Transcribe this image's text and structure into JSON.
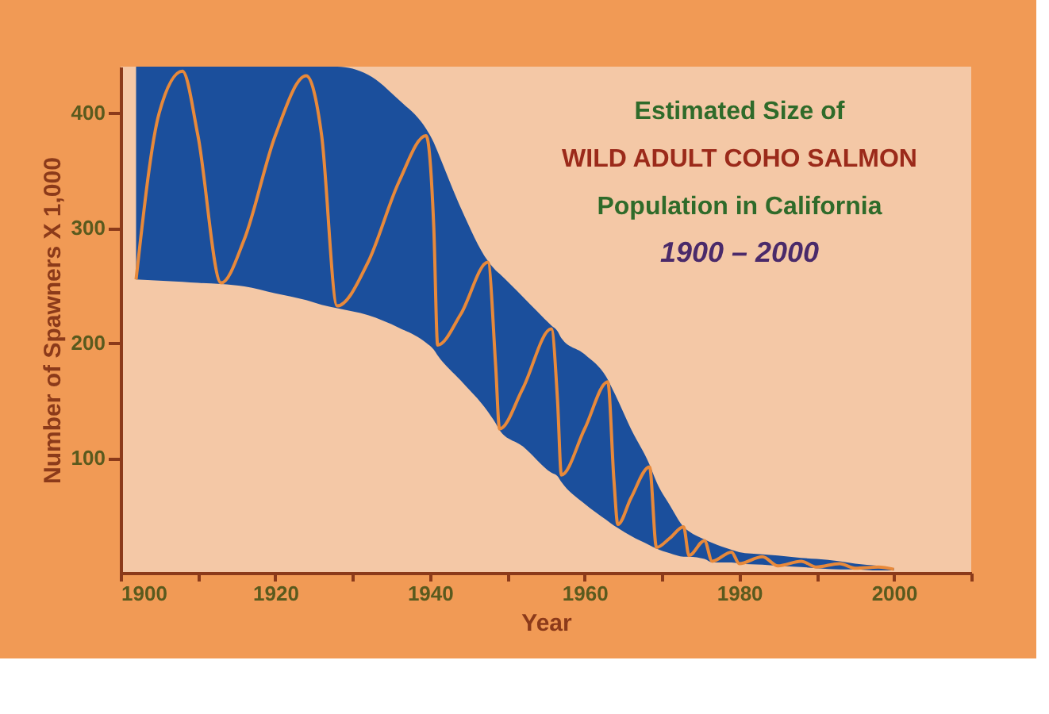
{
  "chart_data": {
    "type": "line",
    "xlabel": "Year",
    "ylabel": "Number of Spawners X 1,000",
    "annotations": [
      "Estimated Size of",
      "WILD ADULT COHO SALMON",
      "Population in California",
      "1900 – 2000"
    ],
    "xlim": [
      1900,
      2010
    ],
    "ylim": [
      0,
      440
    ],
    "xticks": [
      1900,
      {
        "value": 1910,
        "label": null
      },
      1920,
      {
        "value": 1930,
        "label": null
      },
      1940,
      {
        "value": 1950,
        "label": null
      },
      1960,
      {
        "value": 1970,
        "label": null
      },
      1980,
      {
        "value": 1990,
        "label": null
      },
      2000,
      {
        "value": 2010,
        "label": null
      }
    ],
    "yticks": [
      100,
      200,
      300,
      400
    ],
    "grid": false,
    "marker": "none",
    "line_style": "solid",
    "series": [
      {
        "color": "#e8893a",
        "x": [
          1902,
          1905,
          1908,
          1910,
          1913,
          1916,
          1920,
          1924,
          1926,
          1928,
          1932,
          1936,
          1939.5,
          1940.5,
          1941,
          1944,
          1947.5,
          1948.5,
          1949,
          1952,
          1955.7,
          1956.5,
          1957,
          1960,
          1963,
          1963.8,
          1964.3,
          1966,
          1968.4,
          1969.3,
          1971,
          1972.8,
          1973.5,
          1975.5,
          1976.5,
          1979,
          1980,
          1983,
          1985,
          1988,
          1990,
          1993,
          1995,
          1998,
          2000
        ],
        "values": [
          255,
          400,
          436,
          380,
          252,
          290,
          380,
          432,
          380,
          232,
          270,
          340,
          380,
          300,
          198,
          225,
          270,
          180,
          125,
          160,
          212,
          150,
          85,
          125,
          166,
          80,
          42,
          65,
          92,
          22,
          30,
          40,
          15,
          28,
          10,
          18,
          8,
          14,
          6,
          10,
          5,
          8,
          4,
          5,
          3
        ],
        "upper": [
          440,
          440,
          440,
          440,
          440,
          440,
          440,
          440,
          440,
          440,
          433,
          411,
          386,
          374,
          366,
          317,
          271,
          263,
          260,
          240,
          215,
          210,
          204,
          190,
          168,
          157,
          150,
          125,
          94,
          79,
          59,
          40,
          36,
          29,
          26,
          20,
          18,
          16,
          15,
          13,
          12,
          10,
          8,
          6,
          4
        ],
        "lower": [
          255,
          254,
          253,
          252,
          251,
          249,
          243,
          237,
          233,
          230,
          224,
          213,
          200,
          194,
          189,
          167,
          140,
          130,
          124,
          110,
          87,
          84,
          79,
          60,
          45,
          41,
          39,
          32,
          24,
          21,
          17,
          14,
          14,
          12,
          9,
          9,
          8,
          7,
          6,
          5,
          4,
          3,
          3,
          2,
          2
        ]
      }
    ]
  }
}
